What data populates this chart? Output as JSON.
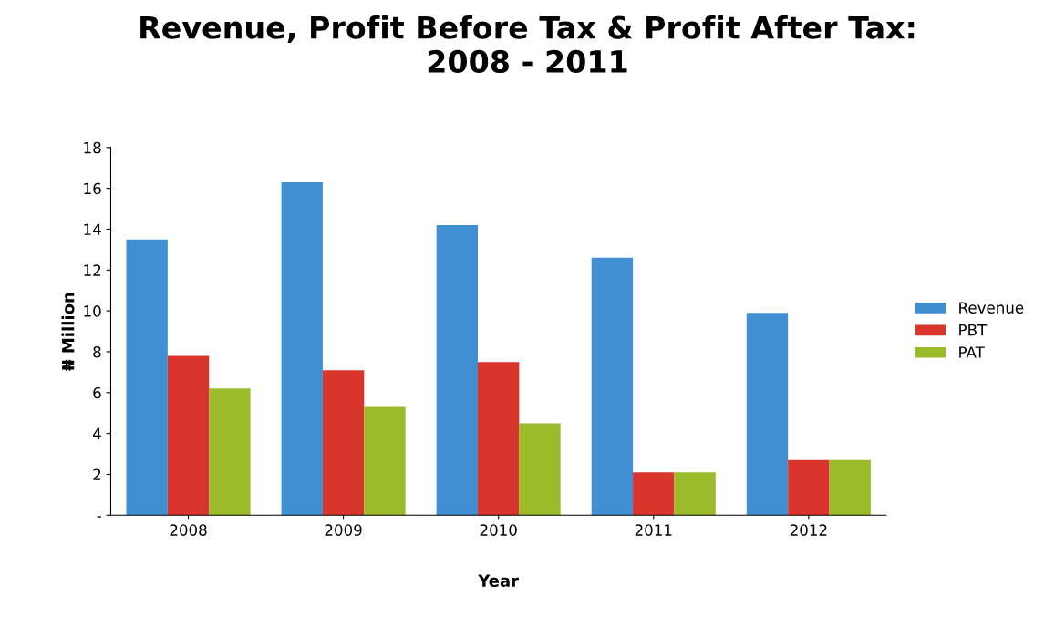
{
  "chart_data": {
    "type": "bar",
    "title": "Revenue, Profit Before Tax & Profit After Tax:\n2008 - 2011",
    "xlabel": "Year",
    "ylabel": "₦ Million",
    "categories": [
      "2008",
      "2009",
      "2010",
      "2011",
      "2012"
    ],
    "series": [
      {
        "name": "Revenue",
        "color": "#3f8fd2",
        "values": [
          13.5,
          16.3,
          14.2,
          12.6,
          9.9
        ]
      },
      {
        "name": "PBT",
        "color": "#d9352c",
        "values": [
          7.8,
          7.1,
          7.5,
          2.1,
          2.7
        ]
      },
      {
        "name": "PAT",
        "color": "#9bbb2a",
        "values": [
          6.2,
          5.3,
          4.5,
          2.1,
          2.7
        ]
      }
    ],
    "ylim": [
      0,
      18
    ],
    "yticks": [
      {
        "value": 0,
        "label": "-"
      },
      2,
      4,
      6,
      8,
      10,
      12,
      14,
      16,
      18
    ],
    "grid": false,
    "legend": "right"
  }
}
